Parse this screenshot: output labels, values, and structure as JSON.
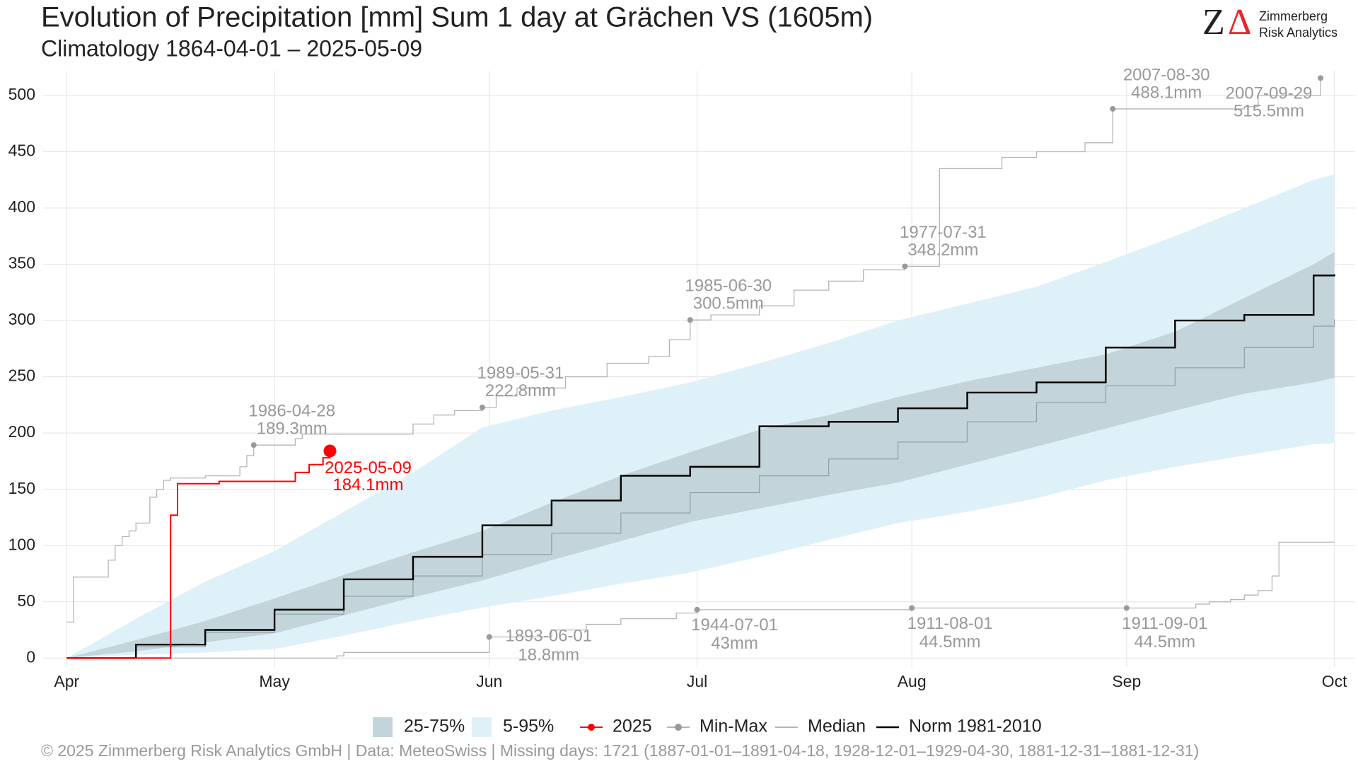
{
  "chart_data": {
    "type": "line",
    "title": "Evolution of Precipitation [mm] Sum 1 day at Grächen  VS (1605m)",
    "subtitle": "Climatology 1864-04-01 – 2025-05-09",
    "logo": {
      "mark_z": "Z",
      "mark_delta": "Δ",
      "line1": "Zimmerberg",
      "line2": "Risk Analytics"
    },
    "footer": "©  2025 Zimmerberg Risk Analytics GmbH | Data: MeteoSwiss | Missing days: 1721 (1887-01-01–1891-04-18, 1928-12-01–1929-04-30, 1881-12-31–1881-12-31)",
    "grid": true,
    "xlim": [
      -3.4,
      186
    ],
    "xticks": [
      {
        "value": 0,
        "label": "Apr"
      },
      {
        "value": 30,
        "label": "May"
      },
      {
        "value": 61,
        "label": "Jun"
      },
      {
        "value": 91,
        "label": "Jul"
      },
      {
        "value": 122,
        "label": "Aug"
      },
      {
        "value": 153,
        "label": "Sep"
      },
      {
        "value": 183,
        "label": "Oct"
      }
    ],
    "ylim": [
      -8,
      522
    ],
    "yticks": [
      0,
      50,
      100,
      150,
      200,
      250,
      300,
      350,
      400,
      450,
      500
    ],
    "band_x": [
      0,
      10,
      20,
      30,
      40,
      50,
      60,
      70,
      80,
      90,
      100,
      110,
      120,
      130,
      140,
      150,
      160,
      170,
      180,
      183
    ],
    "bands": [
      {
        "name": "5-95%",
        "color": "#dff1f8",
        "lower": [
          0,
          3,
          5,
          8,
          20,
          33,
          45,
          55,
          66,
          76,
          90,
          105,
          120,
          130,
          142,
          158,
          170,
          180,
          190,
          191
        ],
        "upper": [
          0,
          35,
          68,
          95,
          130,
          165,
          205,
          220,
          232,
          245,
          262,
          280,
          300,
          315,
          330,
          352,
          375,
          400,
          425,
          430
        ]
      },
      {
        "name": "25-75%",
        "color": "#c3d4da",
        "lower": [
          0,
          6,
          14,
          22,
          38,
          54,
          69,
          87,
          104,
          121,
          133,
          145,
          156,
          172,
          188,
          204,
          220,
          235,
          245,
          249
        ],
        "upper": [
          0,
          16,
          33,
          53,
          74,
          94,
          113,
          138,
          162,
          183,
          203,
          216,
          232,
          246,
          258,
          270,
          290,
          320,
          350,
          361
        ]
      }
    ],
    "median": {
      "name": "Median",
      "color": "#8fa3ad",
      "values": [
        0,
        10,
        23,
        39,
        55,
        73,
        92,
        111,
        129,
        147,
        162,
        177,
        192,
        210,
        227,
        242,
        258,
        276,
        295,
        301
      ]
    },
    "norm": {
      "name": "Norm 1981-2010",
      "color": "#000000",
      "values": [
        0,
        12,
        25,
        43,
        70,
        90,
        118,
        140,
        162,
        170,
        206,
        210,
        222,
        236,
        245,
        276,
        300,
        305,
        340,
        341
      ]
    },
    "series": [
      {
        "name": "2025",
        "color": "#ff0000",
        "x": [
          0,
          14,
          15,
          16,
          21,
          22,
          32,
          33,
          35,
          37,
          38
        ],
        "values": [
          0,
          0,
          127,
          155,
          155,
          157,
          157,
          165,
          172,
          178,
          184.1
        ]
      }
    ],
    "minmax": {
      "name": "Min-Max",
      "color": "#b5b5b5",
      "max": {
        "x": [
          0,
          1,
          6,
          7,
          8,
          9,
          10,
          12,
          13,
          14,
          15,
          20,
          25,
          26,
          27,
          33,
          34,
          50,
          53,
          56,
          60,
          62,
          65,
          72,
          78,
          84,
          87,
          90,
          93,
          100,
          105,
          110,
          115,
          121,
          126,
          135,
          140,
          147,
          151,
          170,
          172,
          181
        ],
        "values": [
          32,
          72,
          87,
          100,
          108,
          113,
          120,
          143,
          150,
          158,
          160,
          162,
          170,
          180,
          189.3,
          195,
          199,
          208,
          216,
          220,
          222.8,
          233,
          240,
          250,
          262,
          268,
          283,
          300.5,
          305,
          313,
          327,
          335,
          345,
          348.2,
          435,
          445,
          450,
          458,
          488.1,
          490,
          500,
          515.5
        ]
      },
      "min": {
        "x": [
          0,
          39,
          40,
          60,
          61,
          70,
          75,
          80,
          88,
          91,
          122,
          153,
          163,
          165,
          168,
          170,
          172,
          174,
          175,
          183
        ],
        "values": [
          0,
          2,
          5,
          5,
          18.8,
          25,
          30,
          35,
          40,
          43,
          44.5,
          44.5,
          48,
          50,
          52,
          56,
          60,
          73,
          103,
          103
        ]
      }
    },
    "annotations": [
      {
        "date": "1986-04-28",
        "x": 27,
        "value": 189.3,
        "label": "189.3mm",
        "color": "#999999"
      },
      {
        "date": "1989-05-31",
        "x": 60,
        "value": 222.8,
        "label": "222.8mm",
        "color": "#999999"
      },
      {
        "date": "1985-06-30",
        "x": 90,
        "value": 300.5,
        "label": "300.5mm",
        "color": "#999999"
      },
      {
        "date": "1977-07-31",
        "x": 121,
        "value": 348.2,
        "label": "348.2mm",
        "color": "#999999"
      },
      {
        "date": "2007-08-30",
        "x": 151,
        "value": 488.1,
        "label": "488.1mm",
        "color": "#999999"
      },
      {
        "date": "2007-09-29",
        "x": 181,
        "value": 515.5,
        "label": "515.5mm",
        "color": "#999999"
      },
      {
        "date": "1893-06-01",
        "x": 61,
        "value": 18.8,
        "label": "18.8mm",
        "color": "#999999"
      },
      {
        "date": "1944-07-01",
        "x": 91,
        "value": 43,
        "label": "43mm",
        "color": "#999999"
      },
      {
        "date": "1911-08-01",
        "x": 122,
        "value": 44.5,
        "label": "44.5mm",
        "color": "#999999"
      },
      {
        "date": "1911-09-01",
        "x": 153,
        "value": 44.5,
        "label": "44.5mm",
        "color": "#999999"
      },
      {
        "date": "2025-05-09",
        "x": 38,
        "value": 184.1,
        "label": "184.1mm",
        "color": "#ff0000"
      }
    ]
  }
}
